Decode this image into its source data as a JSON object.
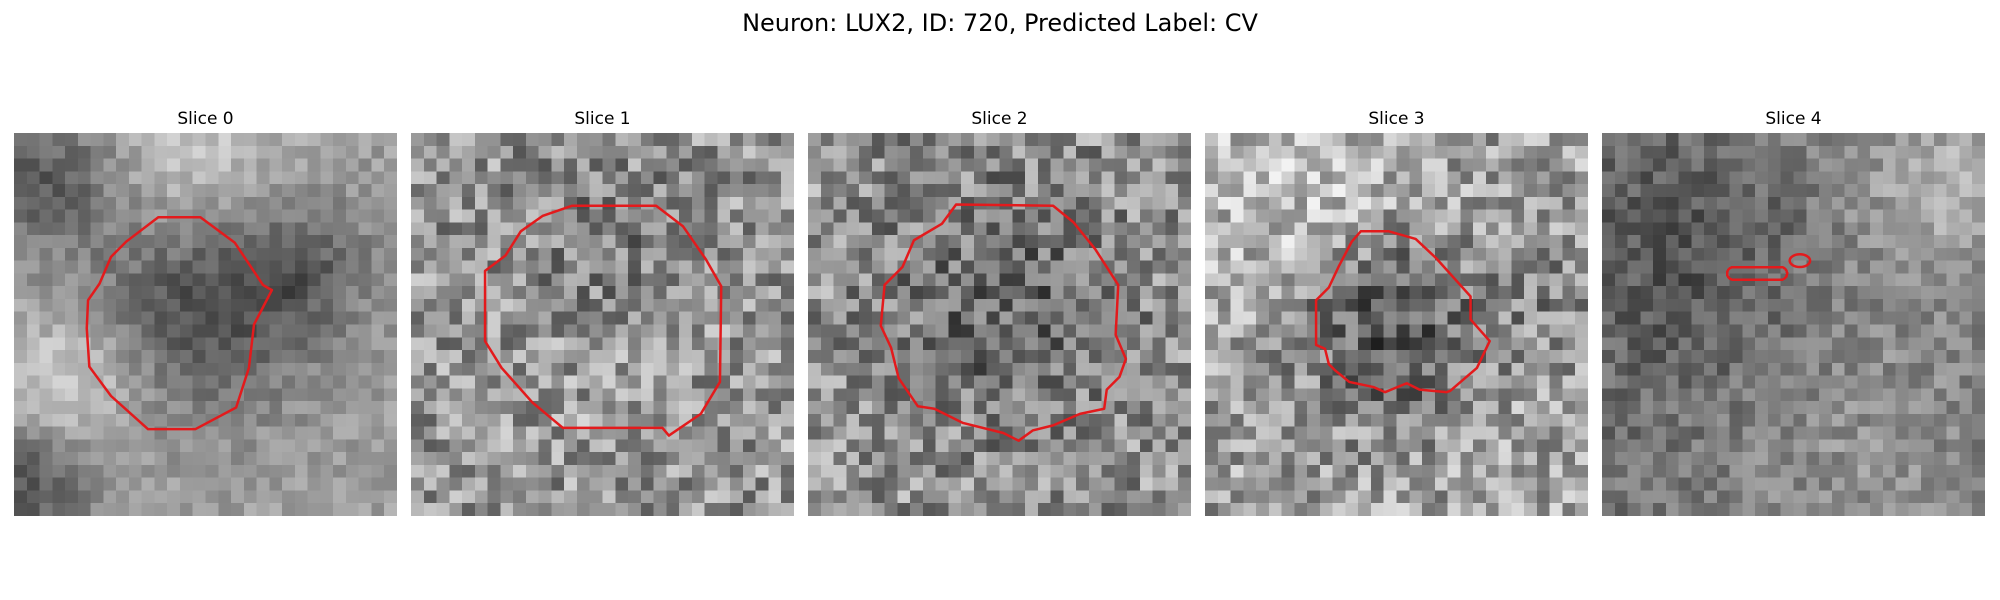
{
  "figure": {
    "title": "Neuron: LUX2, ID: 720, Predicted Label: CV",
    "contour_color": "#e31a1c",
    "colormap": "grayscale"
  },
  "slices": [
    {
      "title": "Slice 0"
    },
    {
      "title": "Slice 1"
    },
    {
      "title": "Slice 2"
    },
    {
      "title": "Slice 3"
    },
    {
      "title": "Slice 4"
    }
  ]
}
